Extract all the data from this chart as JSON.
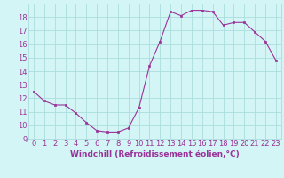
{
  "x": [
    0,
    1,
    2,
    3,
    4,
    5,
    6,
    7,
    8,
    9,
    10,
    11,
    12,
    13,
    14,
    15,
    16,
    17,
    18,
    19,
    20,
    21,
    22,
    23
  ],
  "y": [
    12.5,
    11.8,
    11.5,
    11.5,
    10.9,
    10.2,
    9.6,
    9.5,
    9.5,
    9.8,
    11.3,
    14.4,
    16.2,
    18.4,
    18.1,
    18.5,
    18.5,
    18.4,
    17.4,
    17.6,
    17.6,
    16.9,
    16.2,
    14.8
  ],
  "line_color": "#993399",
  "marker_color": "#993399",
  "bg_color": "#d4f5f5",
  "grid_color": "#aadddd",
  "xlabel": "Windchill (Refroidissement éolien,°C)",
  "xlim": [
    -0.5,
    23.5
  ],
  "ylim": [
    9,
    19
  ],
  "yticks": [
    9,
    10,
    11,
    12,
    13,
    14,
    15,
    16,
    17,
    18
  ],
  "xticks": [
    0,
    1,
    2,
    3,
    4,
    5,
    6,
    7,
    8,
    9,
    10,
    11,
    12,
    13,
    14,
    15,
    16,
    17,
    18,
    19,
    20,
    21,
    22,
    23
  ],
  "tick_color": "#993399",
  "label_fontsize": 6.5,
  "tick_fontsize": 6.0
}
